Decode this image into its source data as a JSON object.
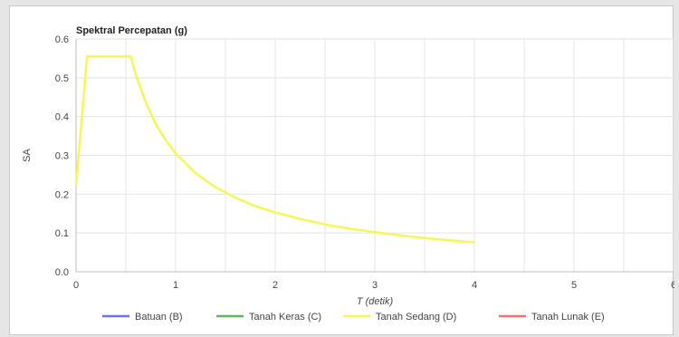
{
  "chart_data": {
    "type": "line",
    "title": "Spektral Percepatan (g)",
    "xlabel": "T (detik)",
    "ylabel": "SA",
    "xlim": [
      0,
      6
    ],
    "ylim": [
      0,
      0.6
    ],
    "x_ticks": [
      "0",
      "1",
      "2",
      "3",
      "4",
      "5",
      "6"
    ],
    "y_ticks": [
      "0.0",
      "0.1",
      "0.2",
      "0.3",
      "0.4",
      "0.5",
      "0.6"
    ],
    "grid": true,
    "legend_position": "bottom",
    "legend": [
      {
        "name": "Batuan (B)",
        "color": "#6f6ff5"
      },
      {
        "name": "Tanah Keras (C)",
        "color": "#5fb55f"
      },
      {
        "name": "Tanah Sedang (D)",
        "color": "#f6f65a"
      },
      {
        "name": "Tanah Lunak (E)",
        "color": "#f56f6f"
      }
    ],
    "series": [
      {
        "name": "Tanah Sedang (D)",
        "color": "#f6f65a",
        "x": [
          0,
          0.11,
          0.2,
          0.3,
          0.4,
          0.55,
          0.6,
          0.7,
          0.8,
          0.9,
          1.0,
          1.2,
          1.4,
          1.6,
          1.8,
          2.0,
          2.25,
          2.5,
          2.75,
          3.0,
          3.25,
          3.5,
          3.75,
          4.0
        ],
        "y": [
          0.222,
          0.555,
          0.555,
          0.555,
          0.555,
          0.555,
          0.508,
          0.436,
          0.381,
          0.339,
          0.305,
          0.254,
          0.218,
          0.191,
          0.169,
          0.153,
          0.136,
          0.122,
          0.111,
          0.102,
          0.094,
          0.087,
          0.081,
          0.076
        ]
      }
    ]
  }
}
